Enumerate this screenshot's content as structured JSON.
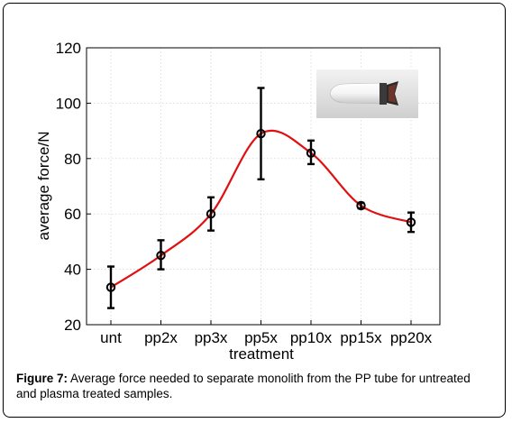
{
  "chart_data": {
    "type": "line",
    "categories": [
      "unt",
      "pp2x",
      "pp3x",
      "pp5x",
      "pp10x",
      "pp15x",
      "pp20x"
    ],
    "series": [
      {
        "values": [
          33.5,
          45,
          60,
          89,
          82,
          63,
          57
        ],
        "error_low": [
          26,
          40,
          54,
          72.5,
          78,
          62,
          53.5
        ],
        "error_high": [
          41,
          50.5,
          66,
          105.5,
          86.5,
          64,
          60.5
        ],
        "color": "#e01010"
      }
    ],
    "xlabel": "treatment",
    "ylabel": "average force/N",
    "ylim": [
      20,
      120
    ],
    "yticks": [
      20,
      40,
      60,
      80,
      100,
      120
    ],
    "grid": true,
    "inset_image": "white conical sample tube with dark cap"
  },
  "caption": {
    "label": "Figure 7:",
    "text": " Average force needed to separate monolith from the PP tube for untreated and plasma treated samples."
  }
}
